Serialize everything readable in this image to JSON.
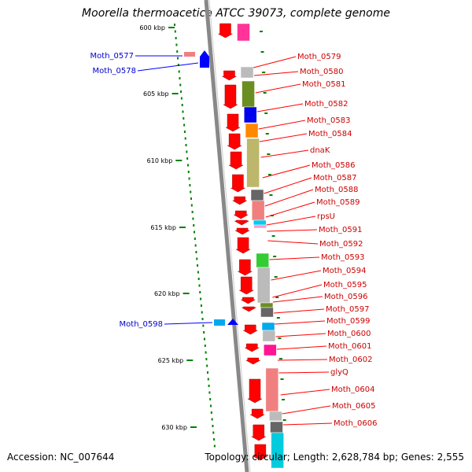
{
  "title": "Moorella thermoacetica ATCC 39073, complete genome",
  "accession": "Accession: NC_007644",
  "summary": "Topology: circular; Length: 2,628,784 bp; Genes: 2,555",
  "colors": {
    "backbone": "#888888",
    "forward_gene": "#ff0000",
    "reverse_gene": "#0000ff",
    "reverse_label": "#0000cc",
    "forward_label": "#cc0000",
    "tick": "#008000"
  },
  "ruler_ticks": [
    "600 kbp",
    "605 kbp",
    "610 kbp",
    "615 kbp",
    "620 kbp",
    "625 kbp",
    "630 kbp"
  ],
  "reverse_genes": [
    "Moth_0577",
    "Moth_0578",
    "Moth_0598"
  ],
  "forward_genes": [
    "Moth_0579",
    "Moth_0580",
    "Moth_0581",
    "Moth_0582",
    "Moth_0583",
    "Moth_0584",
    "dnaK",
    "Moth_0586",
    "Moth_0587",
    "Moth_0588",
    "Moth_0589",
    "rpsU",
    "Moth_0591",
    "Moth_0592",
    "Moth_0593",
    "Moth_0594",
    "Moth_0595",
    "Moth_0596",
    "Moth_0597",
    "Moth_0599",
    "Moth_0600",
    "Moth_0601",
    "Moth_0602",
    "glyQ",
    "Moth_0604",
    "Moth_0605",
    "Moth_0606"
  ]
}
